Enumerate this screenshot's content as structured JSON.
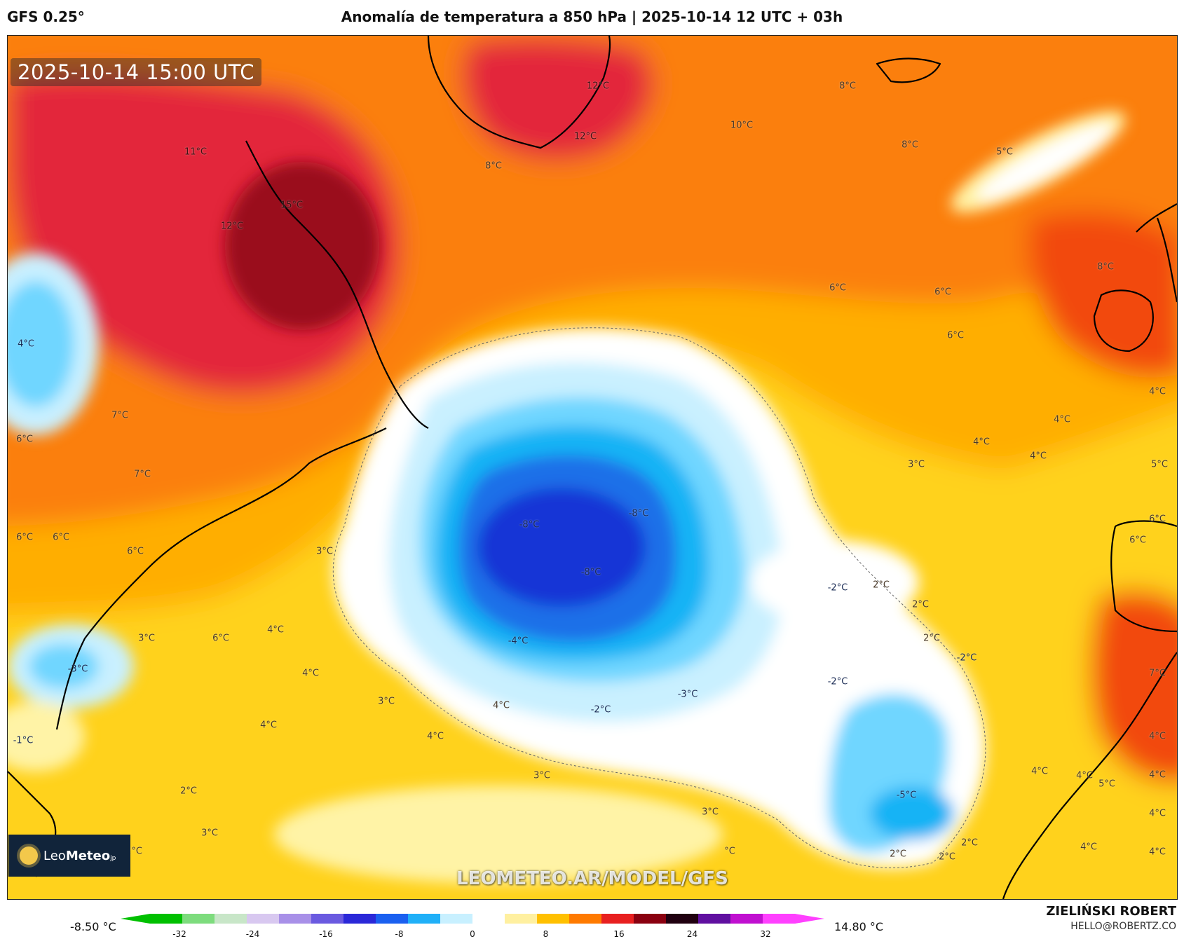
{
  "header": {
    "model": "GFS 0.25°",
    "title": "Anomalía de temperatura a 850 hPa | 2025-10-14 12 UTC + 03h"
  },
  "map": {
    "timestamp": "2025-10-14 15:00 UTC",
    "watermark": "LEOMETEO.AR/MODEL/GFS",
    "logo": {
      "name_light": "Leo",
      "name_bold": "Meteo",
      "suffix": "jp"
    },
    "labels": [
      {
        "text": "12°C",
        "kind": "hot"
      },
      {
        "text": "8°C",
        "kind": "warm"
      },
      {
        "text": "10°C",
        "kind": "warm"
      },
      {
        "text": "12°C",
        "kind": "hot"
      },
      {
        "text": "8°C",
        "kind": "warm"
      },
      {
        "text": "8°C",
        "kind": "warm"
      },
      {
        "text": "5°C",
        "kind": "warm"
      },
      {
        "text": "11°C",
        "kind": "hot"
      },
      {
        "text": "15°C",
        "kind": "hot"
      },
      {
        "text": "12°C",
        "kind": "hot"
      },
      {
        "text": "8°C",
        "kind": "warm"
      },
      {
        "text": "6°C",
        "kind": "warm"
      },
      {
        "text": "6°C",
        "kind": "warm"
      },
      {
        "text": "6°C",
        "kind": "warm"
      },
      {
        "text": "4°C",
        "kind": "cold"
      },
      {
        "text": "7°C",
        "kind": "warm"
      },
      {
        "text": "6°C",
        "kind": "warm"
      },
      {
        "text": "7°C",
        "kind": "warm"
      },
      {
        "text": "4°C",
        "kind": "warm"
      },
      {
        "text": "4°C",
        "kind": "warm"
      },
      {
        "text": "4°C",
        "kind": "warm"
      },
      {
        "text": "3°C",
        "kind": "warm"
      },
      {
        "text": "4°C",
        "kind": "warm"
      },
      {
        "text": "5°C",
        "kind": "warm"
      },
      {
        "text": "6°C",
        "kind": "warm"
      },
      {
        "text": "6°C",
        "kind": "warm"
      },
      {
        "text": "6°C",
        "kind": "warm"
      },
      {
        "text": "3°C",
        "kind": "warm"
      },
      {
        "text": "-8°C",
        "kind": "cold"
      },
      {
        "text": "-8°C",
        "kind": "cold"
      },
      {
        "text": "-8°C",
        "kind": "cold"
      },
      {
        "text": "6°C",
        "kind": "warm"
      },
      {
        "text": "6°C",
        "kind": "warm"
      },
      {
        "text": "2°C",
        "kind": "warm"
      },
      {
        "text": "-2°C",
        "kind": "cold"
      },
      {
        "text": "2°C",
        "kind": "warm"
      },
      {
        "text": "3°C",
        "kind": "warm"
      },
      {
        "text": "6°C",
        "kind": "warm"
      },
      {
        "text": "4°C",
        "kind": "warm"
      },
      {
        "text": "-4°C",
        "kind": "cold"
      },
      {
        "text": "2°C",
        "kind": "warm"
      },
      {
        "text": "-2°C",
        "kind": "cold"
      },
      {
        "text": "-3°C",
        "kind": "cold"
      },
      {
        "text": "4°C",
        "kind": "warm"
      },
      {
        "text": "-2°C",
        "kind": "cold"
      },
      {
        "text": "7°C",
        "kind": "warm"
      },
      {
        "text": "3°C",
        "kind": "warm"
      },
      {
        "text": "4°C",
        "kind": "warm"
      },
      {
        "text": "-2°C",
        "kind": "cold"
      },
      {
        "text": "-3°C",
        "kind": "cold"
      },
      {
        "text": "-1°C",
        "kind": "cold"
      },
      {
        "text": "4°C",
        "kind": "warm"
      },
      {
        "text": "4°C",
        "kind": "warm"
      },
      {
        "text": "4°C",
        "kind": "warm"
      },
      {
        "text": "4°C",
        "kind": "warm"
      },
      {
        "text": "3°C",
        "kind": "warm"
      },
      {
        "text": "5°C",
        "kind": "warm"
      },
      {
        "text": "4°C",
        "kind": "warm"
      },
      {
        "text": "4°C",
        "kind": "warm"
      },
      {
        "text": "-5°C",
        "kind": "cold"
      },
      {
        "text": "2°C",
        "kind": "warm"
      },
      {
        "text": "3°C",
        "kind": "warm"
      },
      {
        "text": "3°C",
        "kind": "warm"
      },
      {
        "text": "4°C",
        "kind": "warm"
      },
      {
        "text": "2°C",
        "kind": "warm"
      },
      {
        "text": "2°C",
        "kind": "warm"
      },
      {
        "text": "2°C",
        "kind": "warm"
      },
      {
        "text": "4°C",
        "kind": "warm"
      },
      {
        "text": "4°C",
        "kind": "warm"
      },
      {
        "text": "2°C",
        "kind": "warm"
      },
      {
        "text": "°C",
        "kind": "warm"
      }
    ]
  },
  "legend": {
    "min_label": "-8.50 °C",
    "max_label": "14.80 °C",
    "ticks": [
      "-32",
      "-24",
      "-16",
      "-8",
      "0",
      "8",
      "16",
      "24",
      "32"
    ],
    "colors": [
      "#00c000",
      "#7ddc7d",
      "#c8e6c8",
      "#d8c8f0",
      "#a890e8",
      "#6a5ae0",
      "#2a28d8",
      "#1a60f0",
      "#20b0f8",
      "#c8f0ff",
      "#ffffff",
      "#fff0a0",
      "#ffc000",
      "#ff7a00",
      "#e82020",
      "#8a0010",
      "#200010",
      "#6010a0",
      "#c010d0",
      "#ff40ff"
    ]
  },
  "author": {
    "name": "ZIELIŃSKI ROBERT",
    "email": "HELLO@ROBERTZ.CO"
  },
  "palette": {
    "deep_red": "#9a0f1e",
    "red": "#e3263a",
    "orange_red": "#f24a10",
    "orange": "#fb7f0a",
    "amber": "#ffae00",
    "yellow": "#ffd21f",
    "light_yellow": "#fff3a6",
    "white": "#ffffff",
    "pale_blue": "#c9f0ff",
    "sky": "#6fd6ff",
    "azure": "#18b3f5",
    "blue": "#1c6fe8",
    "deep_blue": "#1236d6",
    "land_line": "#000000"
  }
}
